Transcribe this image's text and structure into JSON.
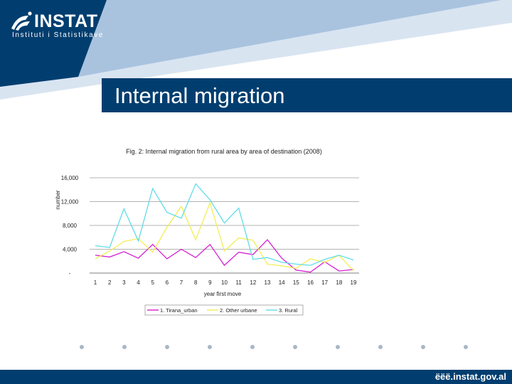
{
  "logo": {
    "wordmark": "INSTAT",
    "subtitle": "Instituti i Statistikave"
  },
  "slide": {
    "title": "Internal migration"
  },
  "footer": {
    "url": "ëëë.instat.gov.al"
  },
  "colors": {
    "navy": "#013e6f",
    "sky": "#a9c3df",
    "series1": "#d61fd0",
    "series2": "#f2ee55",
    "series3": "#61dcea"
  },
  "chart_data": {
    "type": "line",
    "title": "Fig. 2: Internal migration from rural area by area of destination (2008)",
    "xlabel": "year first move",
    "ylabel": "number",
    "categories": [
      "1",
      "2",
      "3",
      "4",
      "5",
      "6",
      "7",
      "8",
      "9",
      "10",
      "11",
      "12",
      "13",
      "14",
      "15",
      "16",
      "17",
      "18",
      "19"
    ],
    "y_ticks": [
      0,
      4000,
      8000,
      12000,
      16000
    ],
    "y_tick_labels": [
      "-",
      "4,000",
      "8,000",
      "12,000",
      "16,000"
    ],
    "ylim": [
      0,
      16000
    ],
    "grid": true,
    "legend_position": "bottom",
    "series": [
      {
        "name": "1. Tirana_urban",
        "color": "#d61fd0",
        "values": [
          3000,
          2700,
          3600,
          2500,
          4800,
          2400,
          4000,
          2600,
          4800,
          1300,
          3500,
          3100,
          5600,
          2500,
          500,
          150,
          1900,
          350,
          600
        ]
      },
      {
        "name": "2. Other urbane",
        "color": "#f2ee55",
        "values": [
          2400,
          3700,
          5300,
          5800,
          3500,
          7700,
          11200,
          5600,
          11800,
          3700,
          5900,
          5500,
          1500,
          1200,
          800,
          2400,
          1800,
          3000,
          400
        ]
      },
      {
        "name": "3. Rural",
        "color": "#61dcea",
        "values": [
          4600,
          4300,
          10800,
          5400,
          14200,
          10200,
          9200,
          15000,
          12300,
          8400,
          10900,
          2300,
          2600,
          1800,
          1500,
          1300,
          2300,
          3000,
          2200
        ]
      }
    ]
  }
}
